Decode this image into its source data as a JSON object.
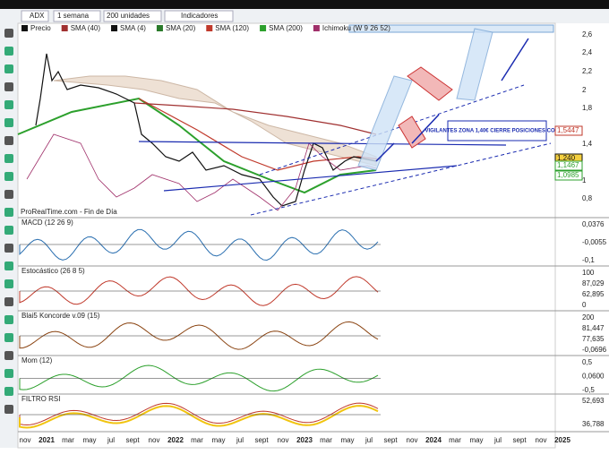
{
  "toolbar": {
    "symbol": "ADX",
    "interval": "1 semana",
    "units": "200 unidades",
    "indicators": "Indicadores"
  },
  "legend": [
    "Precio",
    "SMA (40)",
    "SMA (4)",
    "SMA (20)",
    "SMA (120)",
    "SMA (200)",
    "Ichimoku (W 9 26 52)"
  ],
  "main_axis": [
    "2,6",
    "2,4",
    "2,2",
    "2",
    "1,8",
    "1,4",
    "1",
    "0,8"
  ],
  "price_tags": [
    "1,5447",
    "1,240",
    "1,1467",
    "1,0985"
  ],
  "annotation": "VIGILANTES ZONA 1,40€ CIERRE POSICIONES CORTAS",
  "footer": "ProRealTime.com - Fin de Día",
  "panels": [
    {
      "title": "MACD (12 26 9)",
      "labels": [
        "0,0376",
        "-0,0055",
        "-0,1"
      ]
    },
    {
      "title": "Estocástico (26 8 5)",
      "labels": [
        "100",
        "87,029",
        "62,895",
        "0"
      ]
    },
    {
      "title": "Blai5 Koncorde v.09 (15)",
      "labels": [
        "200",
        "81,447",
        "77,635",
        "-0,0696"
      ]
    },
    {
      "title": "Mom (12)",
      "labels": [
        "0,5",
        "0,0600",
        "-0,5"
      ]
    },
    {
      "title": "FILTRO RSI",
      "labels": [
        "52,693",
        "36,788"
      ]
    }
  ],
  "x_axis": [
    "nov",
    "2021",
    "mar",
    "may",
    "jul",
    "sept",
    "nov",
    "2022",
    "mar",
    "may",
    "jul",
    "sept",
    "nov",
    "2023",
    "mar",
    "may",
    "jul",
    "sept",
    "nov",
    "2024",
    "mar",
    "may",
    "jul",
    "sept",
    "nov",
    "2025"
  ]
}
